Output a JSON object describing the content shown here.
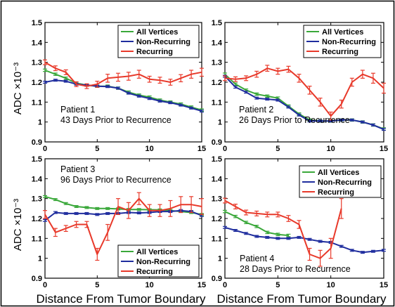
{
  "colors": {
    "all_vertices": "#3aa83a",
    "non_recurring": "#1f2d9e",
    "recurring": "#e8392a"
  },
  "chart_data": [
    {
      "type": "line",
      "xlabel": "",
      "ylabel": "ADC ×10⁻³",
      "xlim": [
        0,
        15
      ],
      "ylim": [
        0.9,
        1.5
      ],
      "xticks": [
        "0",
        "5",
        "10",
        "15"
      ],
      "yticks": [
        "0.9",
        "1",
        "1.1",
        "1.2",
        "1.3",
        "1.4",
        "1.5"
      ],
      "annotation": [
        "Patient 1",
        "43 Days Prior to Recurrence"
      ],
      "legend": [
        "All Vertices",
        "Non-Recurring",
        "Recurring"
      ],
      "legend_position": "top-right",
      "series": [
        {
          "name": "All Vertices",
          "color": "all_vertices",
          "x": [
            0,
            1,
            2,
            3,
            4,
            5,
            6,
            7,
            8,
            9,
            10,
            11,
            12,
            13,
            14,
            15
          ],
          "y": [
            1.26,
            1.24,
            1.22,
            1.195,
            1.185,
            1.18,
            1.18,
            1.17,
            1.15,
            1.135,
            1.125,
            1.11,
            1.1,
            1.09,
            1.075,
            1.06
          ],
          "err": [
            0.006,
            0.006,
            0.006,
            0.006,
            0.006,
            0.006,
            0.006,
            0.006,
            0.006,
            0.006,
            0.006,
            0.006,
            0.006,
            0.006,
            0.006,
            0.006
          ]
        },
        {
          "name": "Non-Recurring",
          "color": "non_recurring",
          "x": [
            0,
            1,
            2,
            3,
            4,
            5,
            6,
            7,
            8,
            9,
            10,
            11,
            12,
            13,
            14,
            15
          ],
          "y": [
            1.2,
            1.21,
            1.205,
            1.19,
            1.185,
            1.18,
            1.178,
            1.17,
            1.145,
            1.13,
            1.118,
            1.105,
            1.097,
            1.085,
            1.07,
            1.055
          ],
          "err": [
            0.005,
            0.005,
            0.005,
            0.005,
            0.005,
            0.005,
            0.005,
            0.005,
            0.005,
            0.005,
            0.005,
            0.005,
            0.005,
            0.005,
            0.005,
            0.005
          ]
        },
        {
          "name": "Recurring",
          "color": "recurring",
          "x": [
            0,
            1,
            2,
            3,
            4,
            5,
            6,
            7,
            8,
            9,
            10,
            11,
            12,
            13,
            14,
            15
          ],
          "y": [
            1.3,
            1.27,
            1.25,
            1.19,
            1.18,
            1.19,
            1.22,
            1.225,
            1.23,
            1.24,
            1.215,
            1.21,
            1.2,
            1.22,
            1.24,
            1.25
          ],
          "err": [
            0.012,
            0.012,
            0.012,
            0.012,
            0.012,
            0.015,
            0.02,
            0.02,
            0.02,
            0.02,
            0.015,
            0.015,
            0.015,
            0.018,
            0.02,
            0.02
          ]
        }
      ]
    },
    {
      "type": "line",
      "xlabel": "",
      "ylabel": "",
      "xlim": [
        0,
        15
      ],
      "ylim": [
        0.9,
        1.5
      ],
      "xticks": [
        "0",
        "5",
        "10",
        "15"
      ],
      "yticks": [
        "0.9",
        "1",
        "1.1",
        "1.2",
        "1.3",
        "1.4",
        "1.5"
      ],
      "annotation": [
        "Patient 2",
        "26 Days Prior to Recurrence"
      ],
      "legend": [
        "All Vertices",
        "Non-Recurring",
        "Recurring"
      ],
      "legend_position": "top-right",
      "series": [
        {
          "name": "All Vertices",
          "color": "all_vertices",
          "x": [
            0,
            1,
            2,
            3,
            4,
            5,
            6,
            7,
            8,
            9,
            10,
            11,
            12,
            13,
            14,
            15
          ],
          "y": [
            1.24,
            1.19,
            1.16,
            1.14,
            1.13,
            1.12,
            1.08,
            1.04,
            1.01,
            1.005,
            1.005,
            1.01,
            1.01,
            1.0,
            0.985,
            0.965
          ],
          "err": [
            0.006,
            0.006,
            0.006,
            0.006,
            0.006,
            0.006,
            0.006,
            0.006,
            0.006,
            0.006,
            0.006,
            0.006,
            0.006,
            0.006,
            0.006,
            0.006
          ]
        },
        {
          "name": "Non-Recurring",
          "color": "non_recurring",
          "x": [
            0,
            1,
            2,
            3,
            4,
            5,
            6,
            7,
            8,
            9,
            10,
            11,
            12,
            13,
            14,
            15
          ],
          "y": [
            1.23,
            1.175,
            1.15,
            1.12,
            1.115,
            1.11,
            1.075,
            1.035,
            1.005,
            1.005,
            1.005,
            1.01,
            1.01,
            1.0,
            0.985,
            0.963
          ],
          "err": [
            0.005,
            0.005,
            0.005,
            0.005,
            0.005,
            0.005,
            0.005,
            0.005,
            0.005,
            0.005,
            0.005,
            0.005,
            0.005,
            0.005,
            0.005,
            0.005
          ]
        },
        {
          "name": "Recurring",
          "color": "recurring",
          "x": [
            0,
            1,
            2,
            3,
            4,
            5,
            6,
            7,
            8,
            9,
            10,
            11,
            12,
            13,
            14,
            15
          ],
          "y": [
            1.22,
            1.215,
            1.22,
            1.24,
            1.27,
            1.255,
            1.265,
            1.22,
            1.16,
            1.1,
            1.03,
            1.09,
            1.2,
            1.24,
            1.22,
            1.17
          ],
          "err": [
            0.012,
            0.012,
            0.012,
            0.015,
            0.015,
            0.015,
            0.015,
            0.02,
            0.02,
            0.02,
            0.02,
            0.02,
            0.02,
            0.02,
            0.025,
            0.025
          ]
        }
      ]
    },
    {
      "type": "line",
      "xlabel": "Distance From Tumor Boundary",
      "ylabel": "ADC ×10⁻³",
      "xlim": [
        0,
        15
      ],
      "ylim": [
        0.9,
        1.5
      ],
      "xticks": [
        "0",
        "5",
        "10",
        "15"
      ],
      "yticks": [
        "0.9",
        "1",
        "1.1",
        "1.2",
        "1.3",
        "1.4",
        "1.5"
      ],
      "annotation": [
        "Patient 3",
        "96 Days Prior to Recurrence"
      ],
      "legend": [
        "All Vertices",
        "Non-Recurring",
        "Recurring"
      ],
      "legend_position": "bottom-right",
      "series": [
        {
          "name": "All Vertices",
          "color": "all_vertices",
          "x": [
            0,
            1,
            2,
            3,
            4,
            5,
            6,
            7,
            8,
            9,
            10,
            11,
            12,
            13,
            14,
            15
          ],
          "y": [
            1.31,
            1.295,
            1.275,
            1.26,
            1.255,
            1.25,
            1.25,
            1.248,
            1.245,
            1.245,
            1.244,
            1.243,
            1.24,
            1.235,
            1.23,
            1.22
          ],
          "err": [
            0.005,
            0.005,
            0.005,
            0.005,
            0.005,
            0.005,
            0.005,
            0.005,
            0.005,
            0.005,
            0.005,
            0.005,
            0.005,
            0.005,
            0.005,
            0.005
          ]
        },
        {
          "name": "Non-Recurring",
          "color": "non_recurring",
          "x": [
            0,
            1,
            2,
            3,
            4,
            5,
            6,
            7,
            8,
            9,
            10,
            11,
            12,
            13,
            14,
            15
          ],
          "y": [
            1.19,
            1.23,
            1.225,
            1.225,
            1.225,
            1.22,
            1.225,
            1.225,
            1.23,
            1.228,
            1.23,
            1.235,
            1.235,
            1.24,
            1.235,
            1.215
          ],
          "err": [
            0.005,
            0.005,
            0.005,
            0.005,
            0.005,
            0.005,
            0.005,
            0.005,
            0.005,
            0.005,
            0.005,
            0.005,
            0.005,
            0.005,
            0.005,
            0.005
          ]
        },
        {
          "name": "Recurring",
          "color": "recurring",
          "x": [
            0,
            1,
            2,
            3,
            4,
            5,
            6,
            7,
            8,
            9,
            10,
            11,
            12,
            13,
            14,
            15
          ],
          "y": [
            1.22,
            1.13,
            1.15,
            1.17,
            1.17,
            1.02,
            1.13,
            1.26,
            1.24,
            1.3,
            1.24,
            1.24,
            1.25,
            1.27,
            1.27,
            1.26
          ],
          "err": [
            0.02,
            0.02,
            0.015,
            0.015,
            0.015,
            0.03,
            0.04,
            0.04,
            0.04,
            0.03,
            0.03,
            0.03,
            0.04,
            0.04,
            0.04,
            0.04
          ]
        }
      ]
    },
    {
      "type": "line",
      "xlabel": "Distance From Tumor Boundary",
      "ylabel": "",
      "xlim": [
        0,
        15
      ],
      "ylim": [
        0.9,
        1.5
      ],
      "xticks": [
        "0",
        "5",
        "10",
        "15"
      ],
      "yticks": [
        "0.9",
        "1",
        "1.1",
        "1.2",
        "1.3",
        "1.4",
        "1.5"
      ],
      "annotation": [
        "Patient 4",
        "28 Days Prior to Recurrence"
      ],
      "legend": [
        "All Vertices",
        "Non-Recurring",
        "Recurring"
      ],
      "legend_position": "top-right",
      "series": [
        {
          "name": "All Vertices",
          "color": "all_vertices",
          "x": [
            0,
            1,
            2,
            3,
            4,
            5,
            6
          ],
          "y": [
            1.235,
            1.21,
            1.18,
            1.16,
            1.13,
            1.12,
            1.115
          ],
          "err": [
            0.006,
            0.006,
            0.006,
            0.006,
            0.006,
            0.006,
            0.006
          ]
        },
        {
          "name": "Non-Recurring",
          "color": "non_recurring",
          "x": [
            0,
            1,
            2,
            3,
            4,
            5,
            6,
            7,
            8,
            9,
            10,
            11,
            12,
            13,
            14,
            15
          ],
          "y": [
            1.155,
            1.14,
            1.125,
            1.11,
            1.105,
            1.1,
            1.1,
            1.105,
            1.095,
            1.085,
            1.08,
            1.06,
            1.04,
            1.03,
            1.035,
            1.04
          ],
          "err": [
            0.005,
            0.005,
            0.005,
            0.005,
            0.005,
            0.005,
            0.005,
            0.005,
            0.005,
            0.005,
            0.005,
            0.005,
            0.005,
            0.005,
            0.005,
            0.005
          ]
        },
        {
          "name": "Recurring",
          "color": "recurring",
          "x": [
            0,
            1,
            2,
            3,
            4,
            5,
            6,
            7,
            8,
            9,
            10,
            11
          ],
          "y": [
            1.29,
            1.26,
            1.23,
            1.225,
            1.22,
            1.22,
            1.2,
            1.17,
            1.02,
            1.0,
            1.05,
            1.25
          ],
          "err": [
            0.012,
            0.012,
            0.012,
            0.012,
            0.012,
            0.012,
            0.015,
            0.02,
            0.03,
            0.04,
            0.05,
            0.05
          ]
        }
      ]
    }
  ]
}
